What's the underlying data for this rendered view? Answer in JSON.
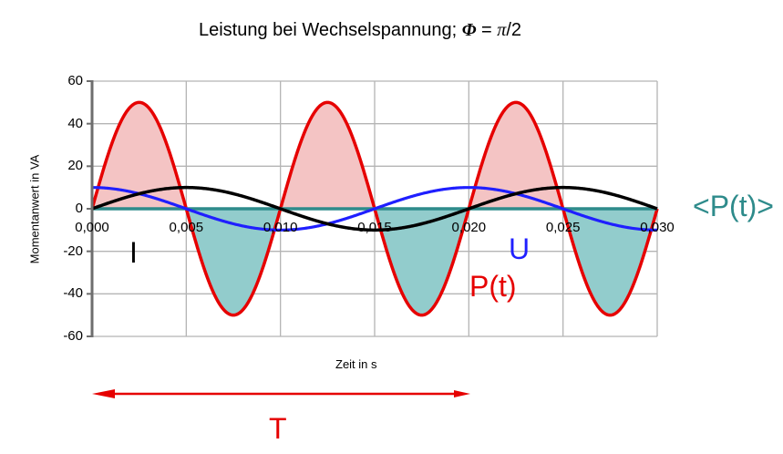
{
  "title": {
    "prefix": "Leistung bei Wechselspannung; ",
    "phi": "Φ",
    "eq": " = ",
    "pi": "π",
    "suffix": "/2"
  },
  "chart_data": {
    "type": "line",
    "title": "Leistung bei Wechselspannung; Φ = π/2",
    "xlabel": "Zeit in s",
    "ylabel": "Momentanwert in VA",
    "xlim": [
      0,
      0.03
    ],
    "ylim": [
      -60,
      60
    ],
    "x_ticks": [
      "0,000",
      "0,005",
      "0,010",
      "0,015",
      "0,020",
      "0,025",
      "0,030"
    ],
    "y_ticks": [
      "60",
      "40",
      "20",
      "0",
      "-20",
      "-40",
      "-60"
    ],
    "grid": true,
    "series": [
      {
        "name": "U",
        "formula": "10*cos(2*pi*50*t)",
        "amplitude": 10,
        "frequency_hz": 50,
        "color": "#1f1fff",
        "x": [
          0,
          0.0025,
          0.005,
          0.0075,
          0.01,
          0.0125,
          0.015,
          0.0175,
          0.02,
          0.0225,
          0.025,
          0.0275,
          0.03
        ],
        "values": [
          10,
          7.07,
          0,
          -7.07,
          -10,
          -7.07,
          0,
          7.07,
          10,
          7.07,
          0,
          -7.07,
          -10
        ]
      },
      {
        "name": "I",
        "formula": "10*sin(2*pi*50*t)",
        "amplitude": 10,
        "frequency_hz": 50,
        "color": "#000000",
        "x": [
          0,
          0.0025,
          0.005,
          0.0075,
          0.01,
          0.0125,
          0.015,
          0.0175,
          0.02,
          0.0225,
          0.025,
          0.0275,
          0.03
        ],
        "values": [
          0,
          7.07,
          10,
          7.07,
          0,
          -7.07,
          -10,
          -7.07,
          0,
          7.07,
          10,
          7.07,
          0
        ]
      },
      {
        "name": "P(t)",
        "formula": "50*sin(2*pi*100*t)",
        "amplitude": 50,
        "frequency_hz": 100,
        "color": "#e60000",
        "x": [
          0,
          0.0025,
          0.005,
          0.0075,
          0.01,
          0.0125,
          0.015,
          0.0175,
          0.02,
          0.0225,
          0.025,
          0.0275,
          0.03
        ],
        "values": [
          0,
          50,
          0,
          -50,
          0,
          50,
          0,
          -50,
          0,
          50,
          0,
          -50,
          0
        ]
      },
      {
        "name": "<P(t)>",
        "formula": "0",
        "color": "#2e8b8b",
        "x": [
          0,
          0.03
        ],
        "values": [
          0,
          0
        ]
      }
    ],
    "fill_positive_color": "#f4c4c4",
    "fill_negative_color": "#92cccc",
    "annotations": [
      {
        "text": "I",
        "x": 0.0023,
        "y": -12,
        "color": "#000000"
      },
      {
        "text": "U",
        "x": 0.0225,
        "y": -10,
        "color": "#1f1fff"
      },
      {
        "text": "P(t)",
        "x": 0.0205,
        "y": -22,
        "color": "#e60000"
      },
      {
        "text": "<P(t)>",
        "position": "right of plot at y=0",
        "color": "#2e8b8b"
      },
      {
        "text": "T",
        "description": "double arrow spanning t=0 to t=0.020 (one period)",
        "color": "#e60000"
      }
    ]
  },
  "labels": {
    "xlabel": "Zeit in s",
    "ylabel": "Momentanwert in VA",
    "I": "I",
    "U": "U",
    "P": "P(t)",
    "Pavg": "<P(t)>",
    "T": "T"
  },
  "colors": {
    "U": "#1f1fff",
    "I": "#000000",
    "P": "#e60000",
    "Pavg": "#2e8b8b",
    "fill_pos": "#f4c4c4",
    "fill_neg": "#92cccc",
    "grid": "#b4b4b4",
    "axis": "#6e6e6e",
    "T_arrow": "#e60000"
  }
}
